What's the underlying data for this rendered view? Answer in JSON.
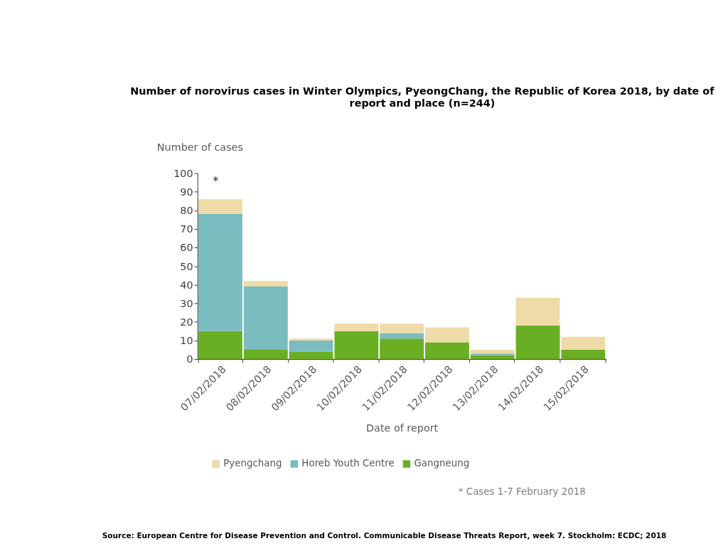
{
  "chart_data": {
    "type": "bar",
    "title": "Number of norovirus cases in Winter Olympics, PyeongChang, the Republic of Korea 2018, by date of report and place (n=244)",
    "xlabel": "Date of report",
    "ylabel": "Number of cases",
    "categories": [
      "07/02/2018",
      "08/02/2018",
      "09/02/2018",
      "10/02/2018",
      "11/02/2018",
      "12/02/2018",
      "13/02/2018",
      "14/02/2018",
      "15/02/2018"
    ],
    "stacked": true,
    "series": [
      {
        "name": "Gangneung",
        "color": "#6aaf23",
        "values": [
          15,
          5,
          4,
          15,
          11,
          9,
          2,
          18,
          5
        ]
      },
      {
        "name": "Horeb Youth Centre",
        "color": "#7bbcc0",
        "values": [
          63,
          34,
          6,
          0,
          3,
          0,
          1,
          0,
          0
        ]
      },
      {
        "name": "Pyengchang",
        "color": "#eedba8",
        "values": [
          8,
          3,
          1,
          4,
          5,
          8,
          2,
          15,
          7
        ]
      }
    ],
    "ylim": [
      0,
      100
    ],
    "yticks": [
      0,
      10,
      20,
      30,
      40,
      50,
      60,
      70,
      80,
      90,
      100
    ],
    "grid": false,
    "legend": "bottom",
    "annotations": [
      "*",
      "* Cases 1-7 February 2018",
      "Source: European Centre for Disease Prevention and Control. Communicable Disease Threats Report, week 7. Stockholm: ECDC; 2018"
    ]
  }
}
